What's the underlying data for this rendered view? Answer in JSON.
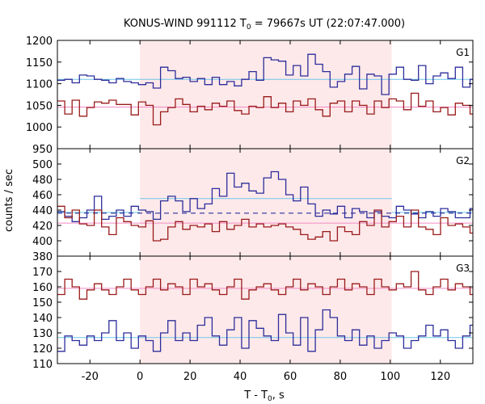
{
  "chart_data": {
    "type": "line",
    "title_main": "KONUS-WIND 991112 T",
    "title_sub": "0",
    "title_rest": " = 79667s UT (22:07:47.000)",
    "ylabel": "counts / sec",
    "xlabel_main": "T - T",
    "xlabel_sub": "0",
    "xlabel_rest": ", s",
    "xlim": [
      -33,
      133
    ],
    "x_ticks": [
      -20,
      0,
      20,
      40,
      60,
      80,
      100,
      120
    ],
    "highlight_interval": [
      0,
      100.6
    ],
    "colors": {
      "blue": "#2d2d9b",
      "red": "#9b1a1a",
      "cyan": "#6fc6ea",
      "pink": "#f28ac4",
      "shade": "#fde9ea"
    },
    "bin_width": 2.944,
    "bin_start": -33,
    "panels": [
      {
        "label": "G1",
        "ylim": [
          950,
          1200
        ],
        "yticks": [
          950,
          1000,
          1050,
          1100,
          1150,
          1200
        ],
        "ytick_labels": [
          "950",
          "1000",
          "1050",
          "1100",
          "1150",
          "1200"
        ],
        "series": [
          {
            "color": "blue",
            "values": [
              1108,
              1110,
              1102,
              1120,
              1118,
              1110,
              1108,
              1102,
              1112,
              1105,
              1102,
              1098,
              1102,
              1090,
              1138,
              1130,
              1112,
              1115,
              1105,
              1112,
              1098,
              1115,
              1098,
              1105,
              1095,
              1110,
              1128,
              1108,
              1160,
              1155,
              1152,
              1120,
              1142,
              1118,
              1168,
              1145,
              1128,
              1092,
              1105,
              1122,
              1140,
              1088,
              1122,
              1118,
              1075,
              1122,
              1138,
              1110,
              1108,
              1142,
              1100,
              1118,
              1125,
              1112,
              1138,
              1092,
              1110,
              1085,
              1120,
              1105,
              1118,
              1080,
              1105,
              1118,
              1125,
              1112,
              1126,
              1120,
              1100,
              1105,
              1110,
              1108,
              1106,
              1105
            ]
          },
          {
            "color": "red",
            "values": [
              1060,
              1030,
              1062,
              1025,
              1045,
              1058,
              1055,
              1062,
              1052,
              1052,
              1028,
              1058,
              1050,
              1005,
              1035,
              1045,
              1065,
              1052,
              1035,
              1048,
              1040,
              1055,
              1048,
              1060,
              1038,
              1030,
              1048,
              1045,
              1070,
              1045,
              1055,
              1035,
              1060,
              1050,
              1065,
              1040,
              1025,
              1055,
              1060,
              1035,
              1060,
              1050,
              1030,
              1060,
              1045,
              1065,
              1060,
              1040,
              1078,
              1048,
              1060,
              1035,
              1045,
              1028,
              1055,
              1050,
              1030,
              1060,
              1048,
              1035,
              1058,
              1055,
              1028,
              1062,
              1055,
              1045,
              1040,
              1058,
              1040,
              1035,
              1030,
              1035,
              1035,
              1030
            ]
          }
        ],
        "levels": [
          {
            "color": "cyan",
            "value": 1110
          },
          {
            "color": "pink",
            "value": 1046
          }
        ],
        "dashed": null
      },
      {
        "label": "G2",
        "ylim": [
          380,
          520
        ],
        "yticks": [
          380,
          400,
          420,
          440,
          460,
          480,
          500
        ],
        "ytick_labels": [
          "380",
          "400",
          "420",
          "440",
          "460",
          "480",
          "500"
        ],
        "series": [
          {
            "color": "blue",
            "values": [
              438,
              432,
              425,
              430,
              440,
              458,
              428,
              432,
              440,
              432,
              445,
              440,
              438,
              428,
              452,
              458,
              452,
              438,
              455,
              442,
              448,
              468,
              458,
              488,
              470,
              475,
              465,
              462,
              482,
              490,
              480,
              460,
              452,
              470,
              448,
              432,
              440,
              435,
              445,
              430,
              442,
              438,
              430,
              438,
              432,
              430,
              445,
              440,
              435,
              430,
              438,
              432,
              442,
              438,
              430,
              430,
              442,
              435,
              440,
              432,
              440,
              428,
              432,
              438,
              428,
              432,
              440,
              430,
              432,
              442,
              438,
              432,
              432,
              428
            ]
          },
          {
            "color": "red",
            "values": [
              445,
              430,
              440,
              422,
              420,
              440,
              418,
              408,
              430,
              425,
              420,
              418,
              426,
              400,
              402,
              418,
              425,
              415,
              420,
              418,
              422,
              412,
              425,
              415,
              420,
              428,
              418,
              422,
              418,
              420,
              422,
              418,
              415,
              408,
              402,
              405,
              412,
              400,
              418,
              412,
              408,
              425,
              420,
              440,
              418,
              425,
              432,
              418,
              440,
              418,
              415,
              408,
              430,
              420,
              422,
              418,
              410,
              420,
              425,
              420,
              435,
              420,
              432,
              425,
              418,
              432,
              422,
              418,
              425,
              420,
              420,
              415,
              418,
              415
            ]
          }
        ],
        "levels": [
          {
            "color": "cyan",
            "value": 437,
            "from": -33,
            "to": 0
          },
          {
            "color": "cyan",
            "value": 455,
            "from": 0,
            "to": 100.6
          },
          {
            "color": "cyan",
            "value": 437,
            "from": 100.6,
            "to": 133
          },
          {
            "color": "pink",
            "value": 423
          }
        ],
        "dashed": {
          "color": "blue",
          "value": 436
        }
      },
      {
        "label": "G3",
        "ylim": [
          110,
          180
        ],
        "yticks": [
          110,
          120,
          130,
          140,
          150,
          160,
          170
        ],
        "ytick_labels": [
          "110",
          "120",
          "130",
          "140",
          "150",
          "160",
          "170"
        ],
        "series": [
          {
            "color": "blue",
            "values": [
              118,
              128,
              125,
              122,
              128,
              125,
              130,
              138,
              125,
              130,
              120,
              128,
              125,
              118,
              130,
              138,
              125,
              130,
              125,
              135,
              140,
              128,
              122,
              132,
              140,
              120,
              138,
              133,
              128,
              125,
              142,
              130,
              122,
              140,
              118,
              132,
              145,
              140,
              128,
              125,
              132,
              122,
              128,
              120,
              125,
              130,
              128,
              120,
              125,
              128,
              135,
              128,
              132,
              125,
              120,
              128,
              135,
              130,
              138,
              125,
              132,
              128,
              130,
              122,
              130,
              120,
              125,
              132,
              128,
              130,
              125,
              128,
              130,
              132
            ]
          },
          {
            "color": "red",
            "values": [
              155,
              165,
              160,
              152,
              158,
              162,
              158,
              155,
              160,
              165,
              158,
              155,
              160,
              165,
              158,
              162,
              160,
              155,
              165,
              160,
              162,
              158,
              155,
              160,
              165,
              152,
              158,
              160,
              162,
              158,
              155,
              160,
              165,
              158,
              162,
              160,
              155,
              160,
              165,
              158,
              162,
              160,
              155,
              165,
              160,
              158,
              162,
              160,
              170,
              158,
              155,
              160,
              165,
              158,
              162,
              160,
              155,
              165,
              160,
              158,
              162,
              160,
              155,
              160,
              165,
              158,
              162,
              160,
              155,
              160,
              165,
              158,
              160,
              160
            ]
          }
        ],
        "levels": [
          {
            "color": "cyan",
            "value": 127
          },
          {
            "color": "pink",
            "value": 159
          }
        ],
        "dashed": null
      }
    ]
  }
}
